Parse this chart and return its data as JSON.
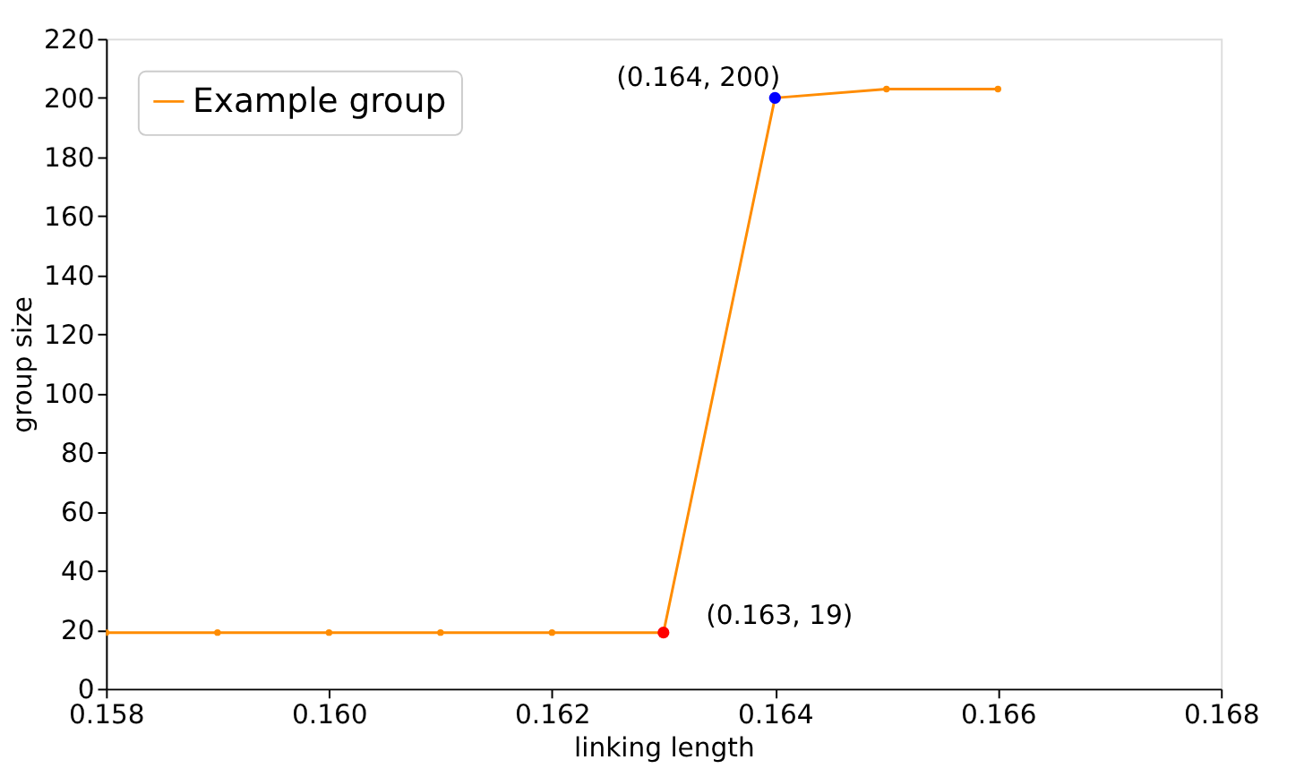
{
  "chart_data": {
    "type": "line",
    "xlabel": "linking length",
    "ylabel": "group size",
    "xlim": [
      0.158,
      0.168
    ],
    "xticks": [
      0.158,
      {
        "value": 0.16,
        "label": "0.160"
      },
      0.162,
      0.164,
      0.166,
      0.168
    ],
    "ylim": [
      0,
      220
    ],
    "yticks": [
      0,
      20,
      40,
      60,
      80,
      100,
      120,
      140,
      160,
      180,
      200,
      220
    ],
    "grid": false,
    "legend": "top left",
    "marker": "circle",
    "line_style": "solid",
    "series": [
      {
        "name": "Example group",
        "color": "#ff8c00",
        "x": [
          0.158,
          0.159,
          0.16,
          0.161,
          0.162,
          0.163,
          0.164,
          0.165,
          0.166
        ],
        "values": [
          19,
          19,
          19,
          19,
          19,
          19,
          200,
          203,
          203
        ]
      },
      {
        "type": "scatter",
        "color": "#ff0000",
        "x": [
          0.163
        ],
        "values": [
          19
        ]
      },
      {
        "type": "scatter",
        "color": "#0000ff",
        "x": [
          0.164
        ],
        "values": [
          200
        ]
      }
    ],
    "annotations": [
      {
        "text": "(0.164, 200)",
        "x": 0.164,
        "y": 200
      },
      {
        "text": "(0.163, 19)",
        "x": 0.163,
        "y": 19
      }
    ]
  }
}
